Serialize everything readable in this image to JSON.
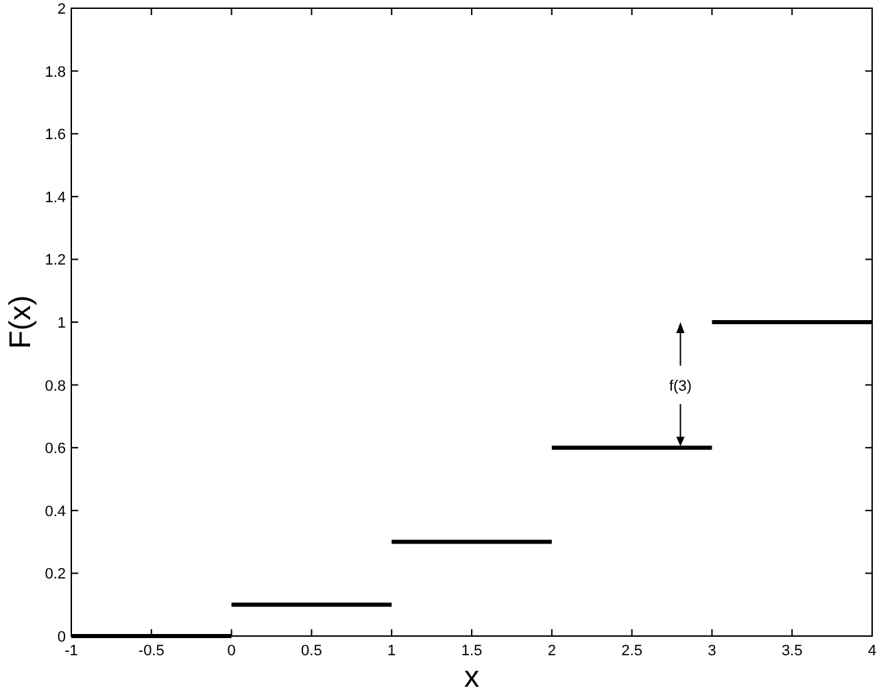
{
  "chart_data": {
    "type": "line",
    "xlabel": "x",
    "ylabel": "F(x)",
    "series": [
      {
        "color": "#000000",
        "x": [
          -1,
          0
        ],
        "values": [
          0,
          0
        ]
      },
      {
        "color": "#000000",
        "x": [
          0,
          1
        ],
        "values": [
          0.1,
          0.1
        ]
      },
      {
        "color": "#000000",
        "x": [
          1,
          2
        ],
        "values": [
          0.3,
          0.3
        ]
      },
      {
        "color": "#000000",
        "x": [
          2,
          3
        ],
        "values": [
          0.6,
          0.6
        ]
      },
      {
        "color": "#000000",
        "x": [
          3,
          4
        ],
        "values": [
          1,
          1
        ]
      }
    ],
    "annotations": [
      "f(3)"
    ],
    "xlim": [
      -1,
      4
    ],
    "xticks": [
      -1,
      -0.5,
      0,
      0.5,
      1,
      1.5,
      2,
      2.5,
      3,
      3.5,
      4
    ],
    "ylim": [
      0,
      2
    ],
    "yticks": [
      0,
      0.2,
      0.4,
      0.6,
      0.8,
      1,
      1.2,
      1.4,
      1.6,
      1.8,
      2
    ],
    "grid": false,
    "marker": "none",
    "line_style": "solid"
  }
}
